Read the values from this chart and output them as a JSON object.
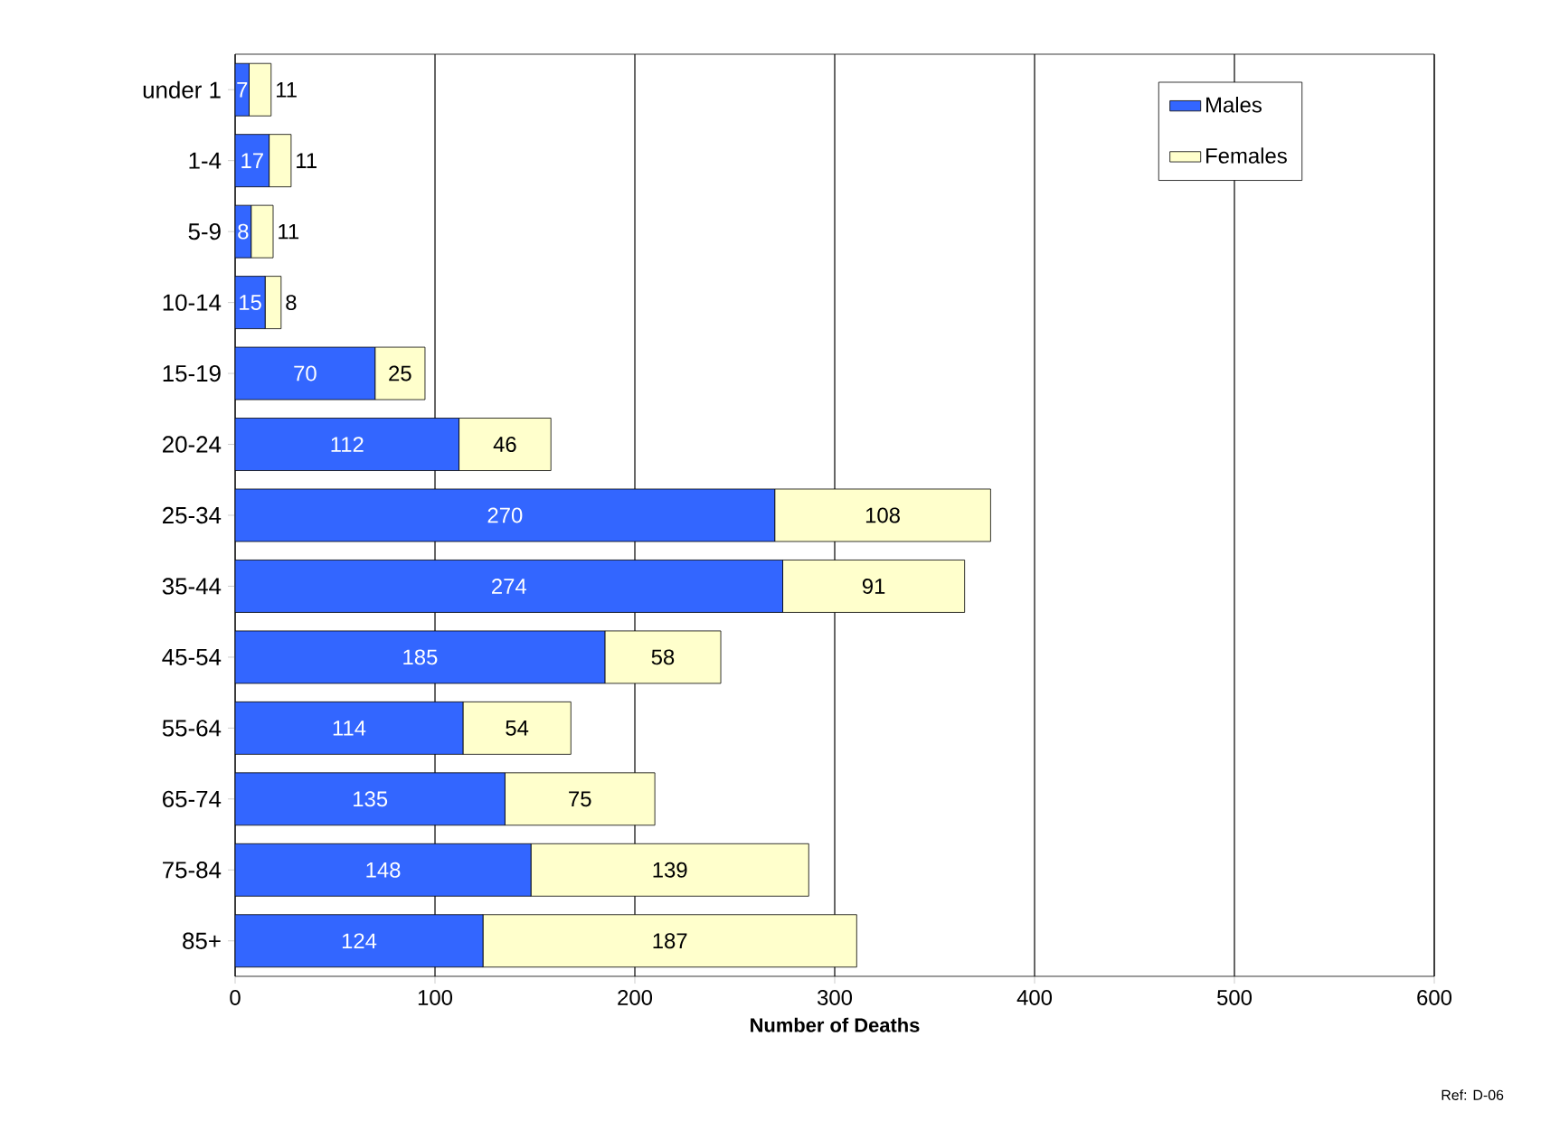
{
  "chart_data": {
    "type": "bar",
    "orientation": "horizontal",
    "stacked": true,
    "categories": [
      "under 1",
      "1-4",
      "5-9",
      "10-14",
      "15-19",
      "20-24",
      "25-34",
      "35-44",
      "45-54",
      "55-64",
      "65-74",
      "75-84",
      "85+"
    ],
    "series": [
      {
        "name": "Males",
        "color": "#3366ff",
        "values": [
          7,
          17,
          8,
          15,
          70,
          112,
          270,
          274,
          185,
          114,
          135,
          148,
          124
        ]
      },
      {
        "name": "Females",
        "color": "#ffffcc",
        "values": [
          11,
          11,
          11,
          8,
          25,
          46,
          108,
          91,
          58,
          54,
          75,
          139,
          187
        ]
      }
    ],
    "xlabel": "Number of Deaths",
    "xlim": [
      0,
      600
    ],
    "xticks": [
      0,
      100,
      200,
      300,
      400,
      500,
      600
    ],
    "grid": "x",
    "legend": "top right",
    "data_labels": true,
    "annotations": [
      "Ref: D-06"
    ]
  }
}
